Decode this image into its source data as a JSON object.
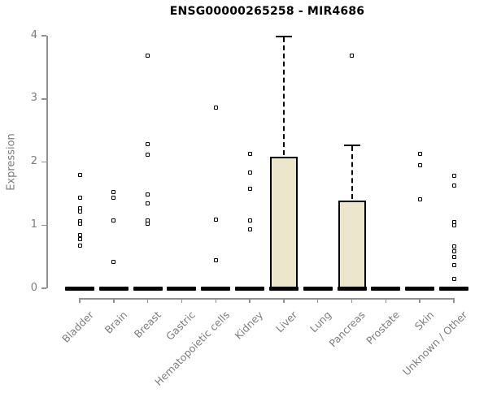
{
  "chart_data": {
    "type": "box",
    "title": "ENSG00000265258 - MIR4686",
    "ylabel": "Expression",
    "ylim": [
      0,
      4
    ],
    "yticks": [
      0,
      1,
      2,
      3,
      4
    ],
    "grid": false,
    "legend": "none",
    "box_fill_color": "#ECE7CC",
    "box_line_color": "#000000",
    "axis_color": "#919191",
    "label_color": "#7d7d7d",
    "title_color": "#000000",
    "categories": [
      "Bladder",
      "Brain",
      "Breast",
      "Gastric",
      "Hematopoietic cells",
      "Kidney",
      "Liver",
      "Lung",
      "Pancreas",
      "Prostate",
      "Skin",
      "Unknown / Other"
    ],
    "series": [
      {
        "category": "Bladder",
        "median": 0,
        "q1": 0,
        "q3": 0,
        "whisker_low": 0,
        "whisker_high": 0,
        "outliers": [
          1.8,
          1.44,
          1.27,
          1.21,
          1.06,
          1.02,
          0.84,
          0.78,
          0.68
        ]
      },
      {
        "category": "Brain",
        "median": 0,
        "q1": 0,
        "q3": 0,
        "whisker_low": 0,
        "whisker_high": 0,
        "outliers": [
          1.52,
          1.44,
          1.08,
          0.42
        ]
      },
      {
        "category": "Breast",
        "median": 0,
        "q1": 0,
        "q3": 0,
        "whisker_low": 0,
        "whisker_high": 0,
        "outliers": [
          3.69,
          2.28,
          2.11,
          1.48,
          1.34,
          1.07,
          1.02
        ]
      },
      {
        "category": "Gastric",
        "median": 0,
        "q1": 0,
        "q3": 0,
        "whisker_low": 0,
        "whisker_high": 0,
        "outliers": []
      },
      {
        "category": "Hematopoietic cells",
        "median": 0,
        "q1": 0,
        "q3": 0,
        "whisker_low": 0,
        "whisker_high": 0,
        "outliers": [
          2.86,
          1.09,
          0.44
        ]
      },
      {
        "category": "Kidney",
        "median": 0,
        "q1": 0,
        "q3": 0,
        "whisker_low": 0,
        "whisker_high": 0,
        "outliers": [
          2.13,
          1.83,
          1.58,
          1.08,
          0.93
        ]
      },
      {
        "category": "Liver",
        "median": 0,
        "q1": 0,
        "q3": 2.08,
        "whisker_low": 0,
        "whisker_high": 4.0,
        "outliers": []
      },
      {
        "category": "Lung",
        "median": 0,
        "q1": 0,
        "q3": 0,
        "whisker_low": 0,
        "whisker_high": 0,
        "outliers": []
      },
      {
        "category": "Pancreas",
        "median": 0,
        "q1": 0,
        "q3": 1.39,
        "whisker_low": 0,
        "whisker_high": 2.28,
        "outliers": [
          3.68
        ]
      },
      {
        "category": "Prostate",
        "median": 0,
        "q1": 0,
        "q3": 0,
        "whisker_low": 0,
        "whisker_high": 0,
        "outliers": []
      },
      {
        "category": "Skin",
        "median": 0,
        "q1": 0,
        "q3": 0,
        "whisker_low": 0,
        "whisker_high": 0,
        "outliers": [
          2.13,
          1.95,
          1.41
        ]
      },
      {
        "category": "Unknown / Other",
        "median": 0,
        "q1": 0,
        "q3": 0,
        "whisker_low": 0,
        "whisker_high": 0,
        "outliers": [
          1.78,
          1.63,
          1.05,
          1.0,
          0.66,
          0.59,
          0.49,
          0.37,
          0.15
        ]
      }
    ]
  }
}
